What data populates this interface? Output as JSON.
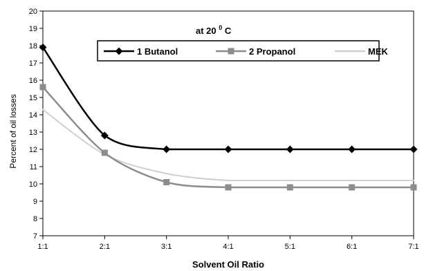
{
  "chart_data": {
    "type": "line",
    "annotation": "at 20",
    "annotation_sup": "0",
    "annotation_unit": "C",
    "xlabel": "Solvent Oil Ratio",
    "ylabel": "Percent of oil losses",
    "categories": [
      "1:1",
      "2:1",
      "3:1",
      "4:1",
      "5:1",
      "6:1",
      "7:1"
    ],
    "ylim": [
      7,
      20
    ],
    "yticks": [
      "7",
      "8",
      "9",
      "10",
      "11",
      "12",
      "13",
      "14",
      "15",
      "16",
      "17",
      "18",
      "19",
      "20"
    ],
    "grid": false,
    "legend_position": "top-center",
    "series": [
      {
        "name": "1 Butanol",
        "values": [
          17.9,
          12.8,
          12.0,
          12.0,
          12.0,
          12.0,
          12.0
        ],
        "color": "#000000",
        "marker": "diamond"
      },
      {
        "name": "2 Propanol",
        "values": [
          15.6,
          11.8,
          10.1,
          9.8,
          9.8,
          9.8,
          9.8
        ],
        "color": "#8c8c8c",
        "marker": "square"
      },
      {
        "name": "MEK",
        "values": [
          14.3,
          11.7,
          10.6,
          10.2,
          10.2,
          10.2,
          10.2
        ],
        "color": "#cfcfcf",
        "marker": "none"
      }
    ]
  }
}
